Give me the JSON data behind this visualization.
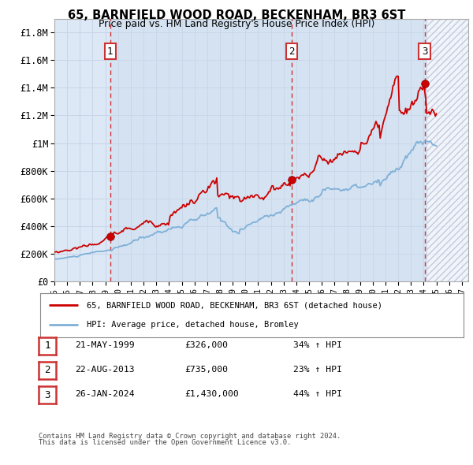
{
  "title": "65, BARNFIELD WOOD ROAD, BECKENHAM, BR3 6ST",
  "subtitle": "Price paid vs. HM Land Registry's House Price Index (HPI)",
  "ylim": [
    0,
    1900000
  ],
  "xlim_start": 1995.0,
  "xlim_end": 2027.5,
  "yticks": [
    0,
    200000,
    400000,
    600000,
    800000,
    1000000,
    1200000,
    1400000,
    1600000,
    1800000
  ],
  "ytick_labels": [
    "£0",
    "£200K",
    "£400K",
    "£600K",
    "£800K",
    "£1M",
    "£1.2M",
    "£1.4M",
    "£1.6M",
    "£1.8M"
  ],
  "xticks": [
    1995,
    1996,
    1997,
    1998,
    1999,
    2000,
    2001,
    2002,
    2003,
    2004,
    2005,
    2006,
    2007,
    2008,
    2009,
    2010,
    2011,
    2012,
    2013,
    2014,
    2015,
    2016,
    2017,
    2018,
    2019,
    2020,
    2021,
    2022,
    2023,
    2024,
    2025,
    2026,
    2027
  ],
  "sale_dates": [
    1999.38,
    2013.64,
    2024.07
  ],
  "sale_prices": [
    326000,
    735000,
    1430000
  ],
  "sale_labels": [
    "1",
    "2",
    "3"
  ],
  "red_line_color": "#cc0000",
  "blue_line_color": "#7fb0d8",
  "sale_marker_color": "#cc0000",
  "vline_color": "#cc3333",
  "grid_color": "#c8d4e8",
  "plot_bg_color": "#dce8f5",
  "legend_label_red": "65, BARNFIELD WOOD ROAD, BECKENHAM, BR3 6ST (detached house)",
  "legend_label_blue": "HPI: Average price, detached house, Bromley",
  "table_rows": [
    {
      "num": "1",
      "date": "21-MAY-1999",
      "price": "£326,000",
      "hpi": "34% ↑ HPI"
    },
    {
      "num": "2",
      "date": "22-AUG-2013",
      "price": "£735,000",
      "hpi": "23% ↑ HPI"
    },
    {
      "num": "3",
      "date": "26-JAN-2024",
      "price": "£1,430,000",
      "hpi": "44% ↑ HPI"
    }
  ],
  "footnote1": "Contains HM Land Registry data © Crown copyright and database right 2024.",
  "footnote2": "This data is licensed under the Open Government Licence v3.0.",
  "hatched_region_start": 2024.25,
  "hatched_region_end": 2027.5,
  "shaded_region_start": 1999.38,
  "shaded_region_end": 2024.25
}
